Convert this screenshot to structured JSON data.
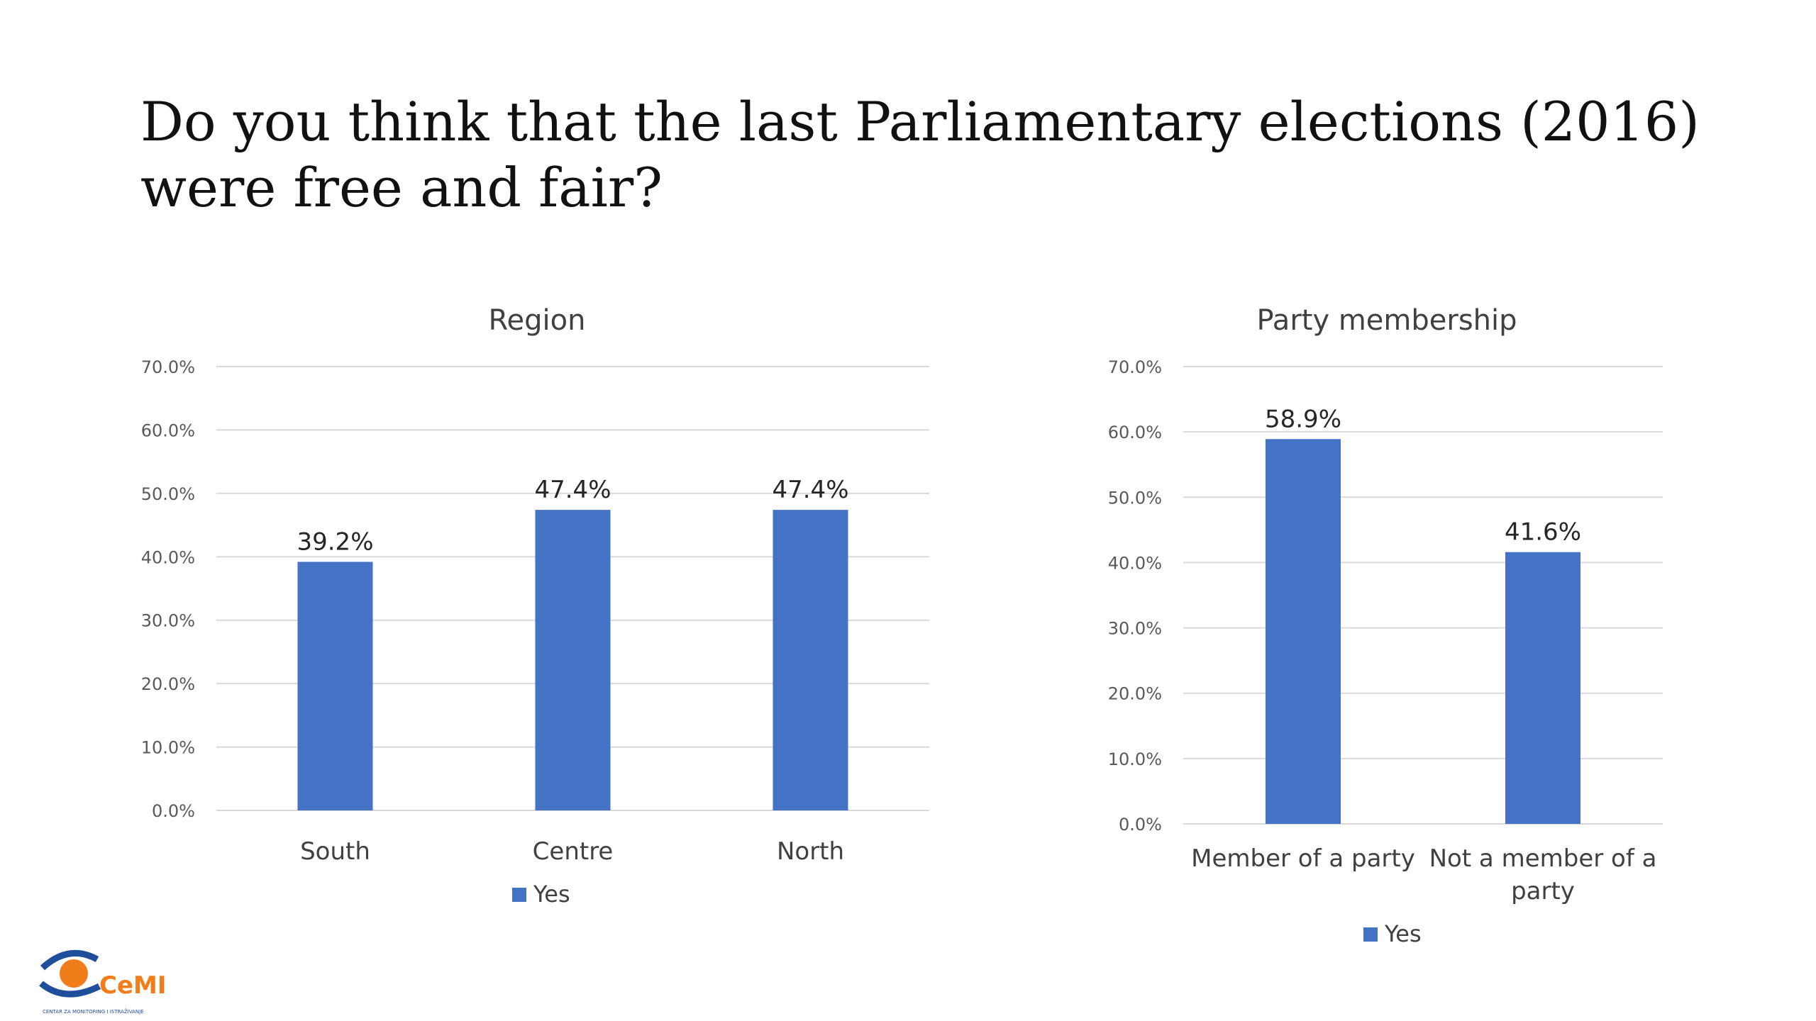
{
  "title": "Do you think that the last Parliamentary elections (2016) were free and fair?",
  "colors": {
    "bar": "#4472C4",
    "grid": "#D9D9D9",
    "logo_blue": "#1F4E9A",
    "logo_orange": "#F07D1A"
  },
  "logo": {
    "text": "CeMI",
    "subtext": "CENTAR ZA MONITORING I ISTRAŽIVANJE"
  },
  "chart_data": [
    {
      "type": "bar",
      "title": "Region",
      "categories": [
        "South",
        "Centre",
        "North"
      ],
      "series": [
        {
          "name": "Yes",
          "values": [
            39.2,
            47.4,
            47.4
          ]
        }
      ],
      "ylim": [
        0,
        70
      ],
      "yticks": [
        "0.0%",
        "10.0%",
        "20.0%",
        "30.0%",
        "40.0%",
        "50.0%",
        "60.0%",
        "70.0%"
      ],
      "data_labels": [
        "39.2%",
        "47.4%",
        "47.4%"
      ],
      "grid": true,
      "legend": "bottom"
    },
    {
      "type": "bar",
      "title": "Party membership",
      "categories": [
        "Member of a party",
        "Not a member of a party"
      ],
      "series": [
        {
          "name": "Yes",
          "values": [
            58.9,
            41.6
          ]
        }
      ],
      "ylim": [
        0,
        70
      ],
      "yticks": [
        "0.0%",
        "10.0%",
        "20.0%",
        "30.0%",
        "40.0%",
        "50.0%",
        "60.0%",
        "70.0%"
      ],
      "data_labels": [
        "58.9%",
        "41.6%"
      ],
      "grid": true,
      "legend": "bottom"
    }
  ]
}
